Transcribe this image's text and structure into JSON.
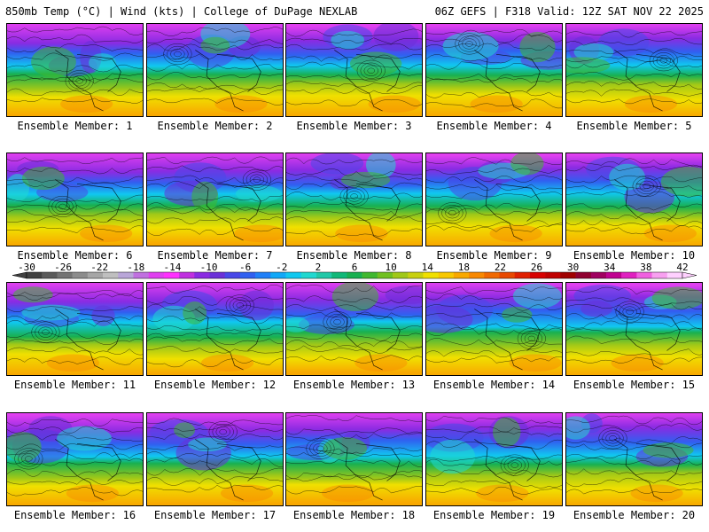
{
  "header": {
    "left": "850mb Temp (°C) | Wind (kts) | College of DuPage NEXLAB",
    "right": "06Z GEFS | F318 Valid: 12Z SAT NOV 22 2025"
  },
  "members": [
    "Ensemble Member: 1",
    "Ensemble Member: 2",
    "Ensemble Member: 3",
    "Ensemble Member: 4",
    "Ensemble Member: 5",
    "Ensemble Member: 6",
    "Ensemble Member: 7",
    "Ensemble Member: 8",
    "Ensemble Member: 9",
    "Ensemble Member: 10",
    "Ensemble Member: 11",
    "Ensemble Member: 12",
    "Ensemble Member: 13",
    "Ensemble Member: 14",
    "Ensemble Member: 15",
    "Ensemble Member: 16",
    "Ensemble Member: 17",
    "Ensemble Member: 18",
    "Ensemble Member: 19",
    "Ensemble Member: 20"
  ],
  "colorbar": {
    "tick_labels": [
      "-30",
      "-26",
      "-22",
      "-18",
      "-14",
      "-10",
      "-6",
      "-2",
      "2",
      "6",
      "10",
      "14",
      "18",
      "22",
      "26",
      "30",
      "34",
      "38",
      "42"
    ],
    "colors": [
      "#404040",
      "#5a5a5a",
      "#737373",
      "#8c8c8c",
      "#a6a6a6",
      "#bfbfbf",
      "#b9a6d8",
      "#c070e0",
      "#e040f0",
      "#ff30ff",
      "#c030e0",
      "#8a2be2",
      "#6a30d8",
      "#4848e8",
      "#3060f0",
      "#2080f8",
      "#10a8f8",
      "#10c8f0",
      "#20d8d0",
      "#20c8a8",
      "#10b878",
      "#18b050",
      "#40b830",
      "#70c020",
      "#a0c818",
      "#c8d010",
      "#f0e000",
      "#f8c800",
      "#f8a800",
      "#f88800",
      "#f06800",
      "#e84800",
      "#e02000",
      "#d80000",
      "#c00000",
      "#a00000",
      "#900030",
      "#a00060",
      "#c00090",
      "#e020c0",
      "#f060e0",
      "#f8a0f0",
      "#ffd0ff"
    ]
  }
}
